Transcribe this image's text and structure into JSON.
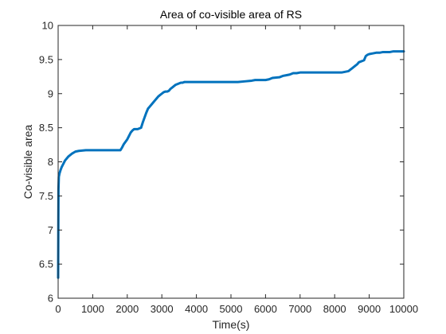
{
  "chart_data": {
    "type": "line",
    "title": "Area of co-visible area of RS",
    "xlabel": "Time(s)",
    "ylabel": "Co-visible area",
    "xlim": [
      0,
      10000
    ],
    "ylim": [
      6,
      10
    ],
    "x_ticks": [
      0,
      1000,
      2000,
      3000,
      4000,
      5000,
      6000,
      7000,
      8000,
      9000,
      10000
    ],
    "x_tick_labels": [
      "0",
      "1000",
      "2000",
      "3000",
      "4000",
      "5000",
      "6000",
      "7000",
      "8000",
      "9000",
      "10000"
    ],
    "y_ticks": [
      6,
      6.5,
      7,
      7.5,
      8,
      8.5,
      9,
      9.5,
      10
    ],
    "y_tick_labels": [
      "6",
      "6.5",
      "7",
      "7.5",
      "8",
      "8.5",
      "9",
      "9.5",
      "10"
    ],
    "grid": false,
    "box": true,
    "line_color": "#0072BD",
    "axis_color": "#262626",
    "series": [
      {
        "x": [
          0,
          5,
          10,
          20,
          40,
          70,
          100,
          150,
          200,
          300,
          400,
          500,
          600,
          800,
          1000,
          1200,
          1400,
          1600,
          1800,
          1850,
          1900,
          2000,
          2050,
          2100,
          2150,
          2200,
          2250,
          2300,
          2350,
          2400,
          2450,
          2500,
          2550,
          2600,
          2650,
          2700,
          2750,
          2800,
          2850,
          2900,
          2950,
          3000,
          3050,
          3100,
          3150,
          3200,
          3250,
          3300,
          3350,
          3400,
          3450,
          3500,
          3550,
          3600,
          3650,
          3700,
          3750,
          3800,
          4000,
          4200,
          4500,
          4800,
          5000,
          5200,
          5400,
          5600,
          5700,
          5800,
          6000,
          6100,
          6150,
          6200,
          6400,
          6500,
          6600,
          6700,
          6750,
          6800,
          6900,
          7000,
          7100,
          7200,
          7500,
          7800,
          8000,
          8200,
          8300,
          8400,
          8450,
          8500,
          8550,
          8600,
          8650,
          8700,
          8800,
          8850,
          8900,
          8950,
          9000,
          9100,
          9200,
          9300,
          9400,
          9500,
          9600,
          9700,
          9800,
          9900,
          10000
        ],
        "y": [
          6.3,
          7.0,
          7.6,
          7.78,
          7.83,
          7.88,
          7.92,
          7.97,
          8.02,
          8.08,
          8.12,
          8.15,
          8.16,
          8.17,
          8.17,
          8.17,
          8.17,
          8.17,
          8.17,
          8.21,
          8.26,
          8.33,
          8.38,
          8.43,
          8.46,
          8.48,
          8.48,
          8.48,
          8.49,
          8.5,
          8.58,
          8.65,
          8.72,
          8.78,
          8.81,
          8.84,
          8.87,
          8.9,
          8.93,
          8.96,
          8.98,
          9.0,
          9.02,
          9.03,
          9.03,
          9.04,
          9.07,
          9.09,
          9.11,
          9.13,
          9.14,
          9.15,
          9.16,
          9.16,
          9.17,
          9.17,
          9.17,
          9.17,
          9.17,
          9.17,
          9.17,
          9.17,
          9.17,
          9.17,
          9.18,
          9.19,
          9.2,
          9.2,
          9.2,
          9.21,
          9.22,
          9.23,
          9.24,
          9.26,
          9.27,
          9.28,
          9.29,
          9.3,
          9.3,
          9.31,
          9.31,
          9.31,
          9.31,
          9.31,
          9.31,
          9.31,
          9.32,
          9.33,
          9.35,
          9.37,
          9.39,
          9.41,
          9.43,
          9.46,
          9.48,
          9.49,
          9.55,
          9.57,
          9.58,
          9.59,
          9.6,
          9.6,
          9.61,
          9.61,
          9.61,
          9.62,
          9.62,
          9.62,
          9.62
        ]
      }
    ]
  }
}
